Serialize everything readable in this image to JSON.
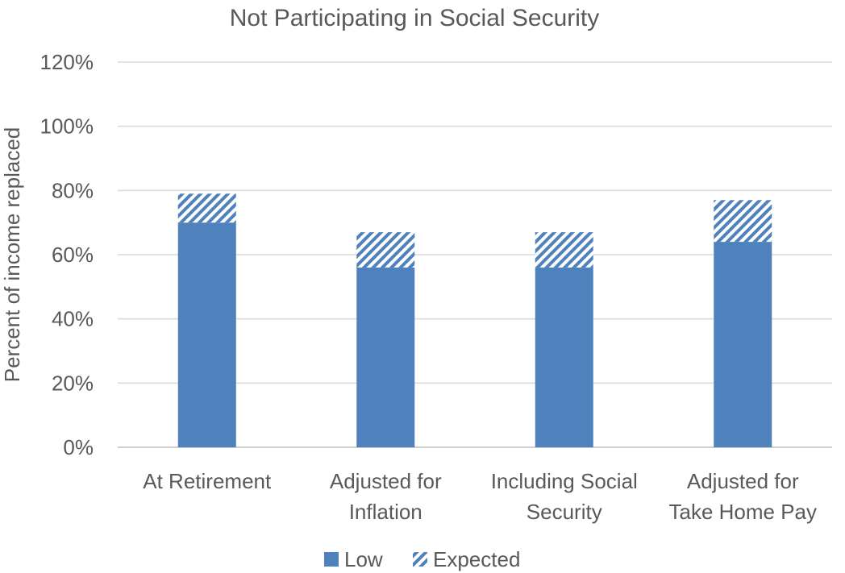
{
  "chart_data": {
    "type": "bar",
    "stacked": true,
    "title": "Not Participating in Social Security",
    "xlabel": "",
    "ylabel": "Percent of income replaced",
    "categories": [
      [
        "At Retirement"
      ],
      [
        "Adjusted for",
        "Inflation"
      ],
      [
        "Including Social",
        "Security"
      ],
      [
        "Adjusted for",
        "Take Home Pay"
      ]
    ],
    "series": [
      {
        "name": "Low",
        "values": [
          70,
          56,
          56,
          64
        ],
        "color": "#4F81BD",
        "pattern": "solid"
      },
      {
        "name": "Expected",
        "values": [
          9,
          11,
          11,
          13
        ],
        "color": "#4F81BD",
        "pattern": "diagonal-hatch"
      }
    ],
    "ylim": [
      0,
      120
    ],
    "yticks": [
      0,
      20,
      40,
      60,
      80,
      100,
      120
    ],
    "ytick_format": "percent",
    "grid": true,
    "legend": "bottom-center"
  }
}
